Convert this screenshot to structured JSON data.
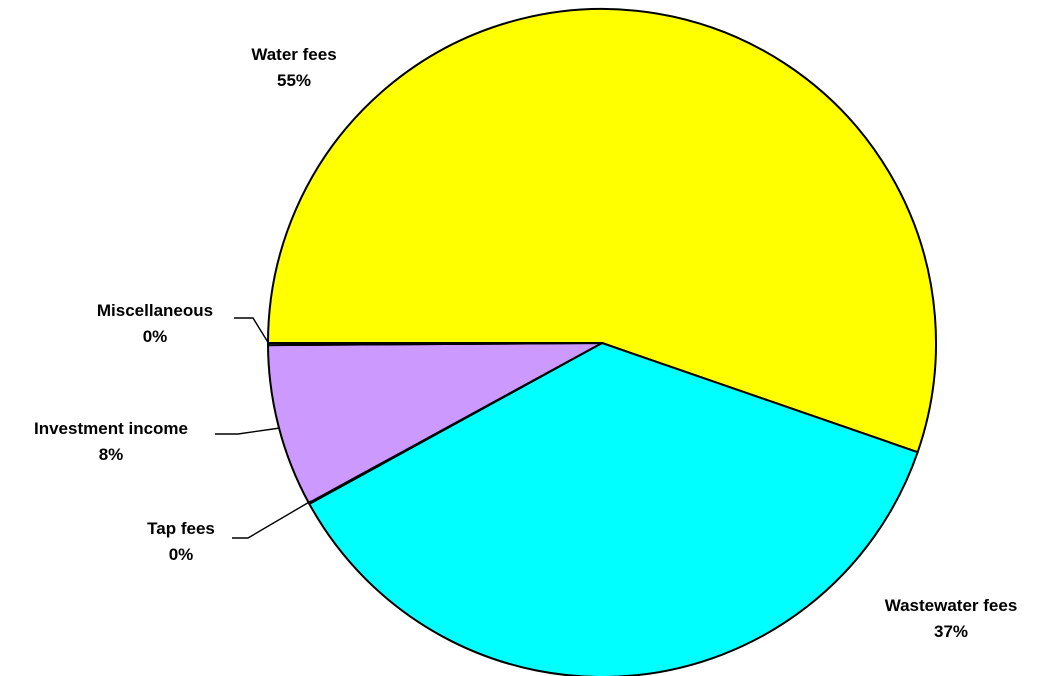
{
  "chart_data": {
    "type": "pie",
    "slices": [
      {
        "label": "Water fees",
        "percent_label": "55%",
        "value": 55.3,
        "color": "#ffff00"
      },
      {
        "label": "Wastewater fees",
        "percent_label": "37%",
        "value": 36.7,
        "color": "#00ffff"
      },
      {
        "label": "Tap fees",
        "percent_label": "0%",
        "value": 0.05,
        "color": "#ff99cc"
      },
      {
        "label": "Investment income",
        "percent_label": "8%",
        "value": 7.85,
        "color": "#cc99ff"
      },
      {
        "label": "Miscellaneous",
        "percent_label": "0%",
        "value": 0.1,
        "color": "#ffffcc"
      }
    ]
  }
}
